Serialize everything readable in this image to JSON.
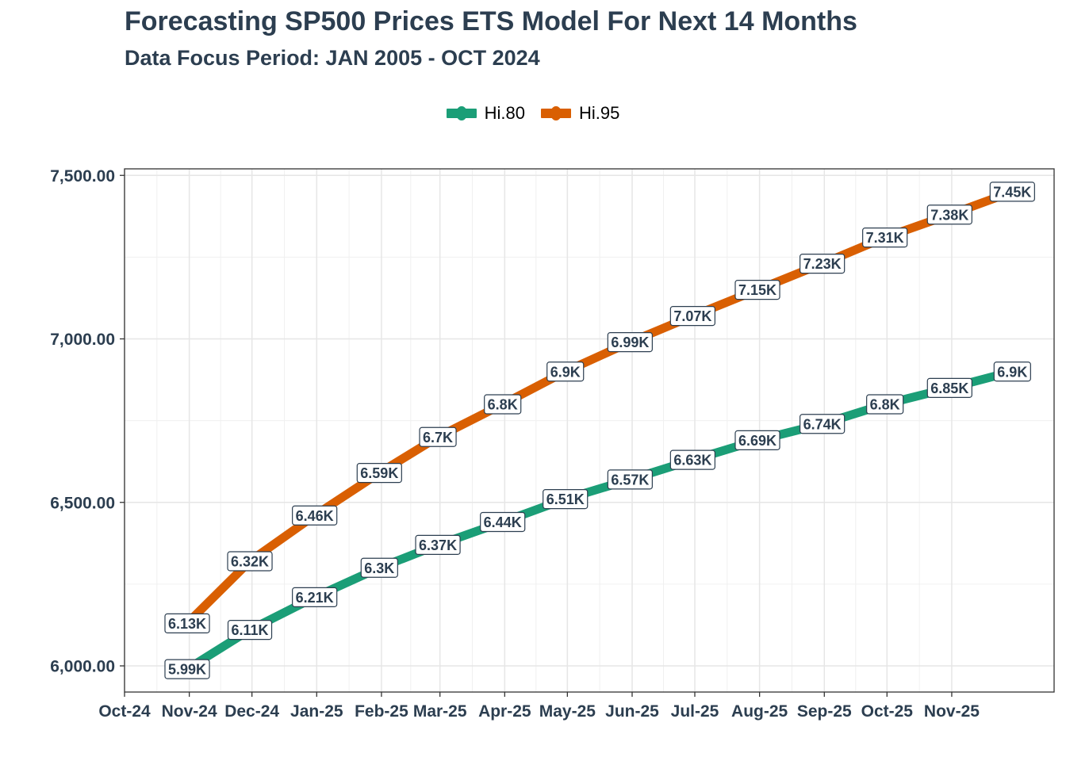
{
  "chart_data": {
    "type": "line",
    "title": "Forecasting SP500 Prices ETS Model For Next 14 Months",
    "subtitle": "Data Focus Period: JAN 2005 - OCT 2024",
    "xlabel": "",
    "ylabel": "",
    "x": [
      "2024-10-31",
      "2024-11-30",
      "2024-12-31",
      "2025-01-31",
      "2025-02-28",
      "2025-03-31",
      "2025-04-30",
      "2025-05-31",
      "2025-06-30",
      "2025-07-31",
      "2025-08-31",
      "2025-09-30",
      "2025-10-31",
      "2025-11-30"
    ],
    "x_tick_dates": [
      "2024-10-01",
      "2024-11-01",
      "2024-12-01",
      "2025-01-01",
      "2025-02-01",
      "2025-03-01",
      "2025-04-01",
      "2025-05-01",
      "2025-06-01",
      "2025-07-01",
      "2025-08-01",
      "2025-09-01",
      "2025-10-01",
      "2025-11-01"
    ],
    "x_tick_labels": [
      "Oct-24",
      "Nov-24",
      "Dec-24",
      "Jan-25",
      "Feb-25",
      "Mar-25",
      "Apr-25",
      "May-25",
      "Jun-25",
      "Jul-25",
      "Aug-25",
      "Sep-25",
      "Oct-25",
      "Nov-25"
    ],
    "y_ticks": [
      6000,
      6500,
      7000,
      7500
    ],
    "y_tick_labels": [
      "6,000.00",
      "6,500.00",
      "7,000.00",
      "7,500.00"
    ],
    "ylim": [
      5920,
      7520
    ],
    "grid": true,
    "legend_position": "top",
    "series": [
      {
        "name": "Hi.80",
        "color": "#1b9e77",
        "values": [
          5990,
          6110,
          6210,
          6300,
          6370,
          6440,
          6510,
          6570,
          6630,
          6690,
          6740,
          6800,
          6850,
          6900
        ],
        "labels": [
          "5.99K",
          "6.11K",
          "6.21K",
          "6.3K",
          "6.37K",
          "6.44K",
          "6.51K",
          "6.57K",
          "6.63K",
          "6.69K",
          "6.74K",
          "6.8K",
          "6.85K",
          "6.9K"
        ]
      },
      {
        "name": "Hi.95",
        "color": "#d95f02",
        "values": [
          6130,
          6320,
          6460,
          6590,
          6700,
          6800,
          6900,
          6990,
          7070,
          7150,
          7230,
          7310,
          7380,
          7450
        ],
        "labels": [
          "6.13K",
          "6.32K",
          "6.46K",
          "6.59K",
          "6.7K",
          "6.8K",
          "6.9K",
          "6.99K",
          "7.07K",
          "7.15K",
          "7.23K",
          "7.31K",
          "7.38K",
          "7.45K"
        ]
      }
    ]
  }
}
